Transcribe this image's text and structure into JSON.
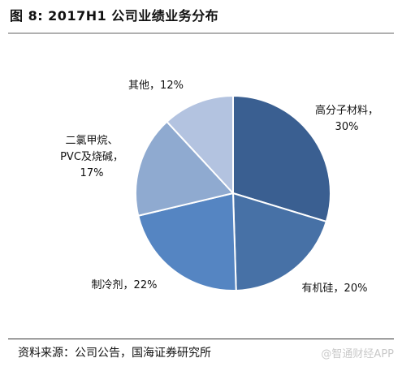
{
  "figure": {
    "title": "图 8:  2017H1 公司业绩业务分布",
    "source": "资料来源：公司公告，国海证券研究所",
    "watermark": "@智通财经APP"
  },
  "chart_data": {
    "type": "pie",
    "start_angle_deg": 0,
    "direction": "clockwise",
    "slices": [
      {
        "lines": [
          "高分子材料，",
          "30%"
        ],
        "value": 30,
        "color": "#3a5f91"
      },
      {
        "lines": [
          "有机硅，20%"
        ],
        "value": 20,
        "color": "#4771a6"
      },
      {
        "lines": [
          "制冷剂，22%"
        ],
        "value": 22,
        "color": "#5585c2"
      },
      {
        "lines": [
          "二氯甲烷、",
          "PVC及烧碱，",
          "17%"
        ],
        "value": 17,
        "color": "#8faad0"
      },
      {
        "lines": [
          "其他，12%"
        ],
        "value": 12,
        "color": "#b3c3e0"
      }
    ]
  }
}
